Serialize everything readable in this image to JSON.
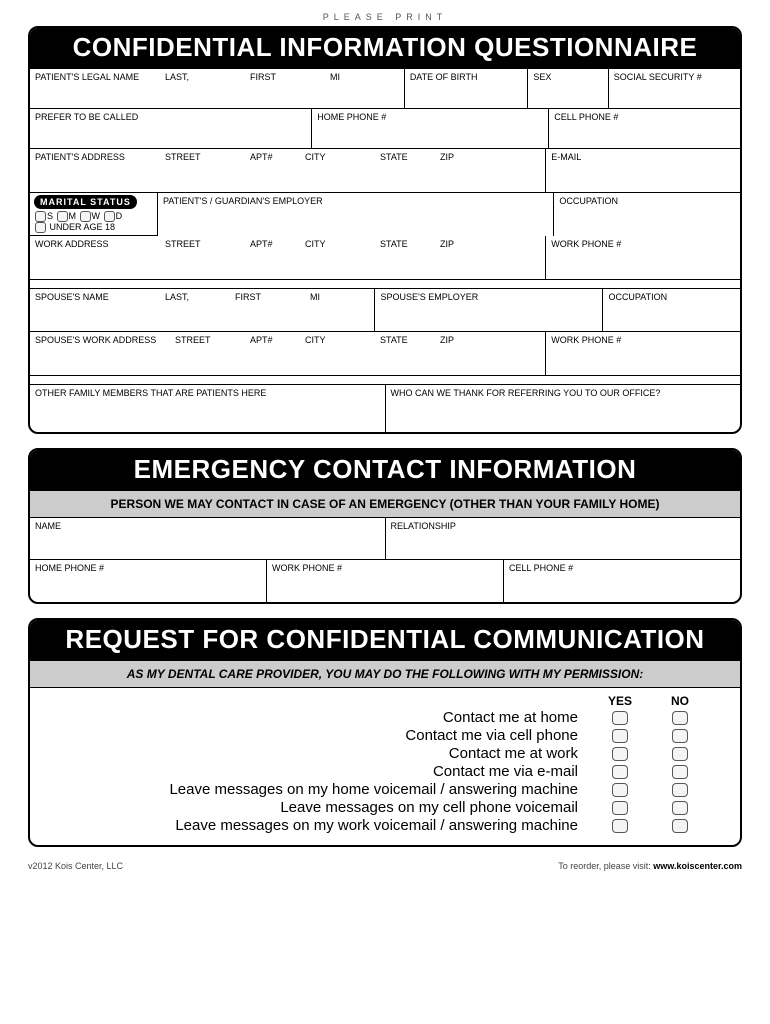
{
  "top_note": "PLEASE PRINT",
  "section1": {
    "title": "CONFIDENTIAL INFORMATION QUESTIONNAIRE",
    "row1": {
      "legal_name": "PATIENT'S LEGAL NAME",
      "last": "LAST,",
      "first": "FIRST",
      "mi": "MI",
      "dob": "DATE OF BIRTH",
      "sex": "SEX",
      "ssn": "SOCIAL SECURITY #"
    },
    "row2": {
      "prefer": "PREFER TO BE CALLED",
      "home_phone": "HOME PHONE #",
      "cell_phone": "CELL PHONE #"
    },
    "row3": {
      "address": "PATIENT'S ADDRESS",
      "street": "STREET",
      "apt": "APT#",
      "city": "CITY",
      "state": "STATE",
      "zip": "ZIP",
      "email": "E-MAIL"
    },
    "marital": {
      "badge": "MARITAL STATUS",
      "s": "S",
      "m": "M",
      "w": "W",
      "d": "D",
      "under18": "UNDER AGE 18"
    },
    "row4": {
      "employer": "PATIENT'S / GUARDIAN'S EMPLOYER",
      "occupation": "OCCUPATION"
    },
    "row5": {
      "work_address": "WORK ADDRESS",
      "street": "STREET",
      "apt": "APT#",
      "city": "CITY",
      "state": "STATE",
      "zip": "ZIP",
      "work_phone": "WORK PHONE #"
    },
    "row6": {
      "spouse_name": "SPOUSE'S NAME",
      "last": "LAST,",
      "first": "FIRST",
      "mi": "MI",
      "spouse_employer": "SPOUSE'S EMPLOYER",
      "occupation": "OCCUPATION"
    },
    "row7": {
      "spouse_work_address": "SPOUSE'S  WORK ADDRESS",
      "street": "STREET",
      "apt": "APT#",
      "city": "CITY",
      "state": "STATE",
      "zip": "ZIP",
      "work_phone": "WORK PHONE #"
    },
    "row8": {
      "other_family": "OTHER FAMILY MEMBERS THAT ARE PATIENTS HERE",
      "referral": "WHO CAN WE THANK FOR REFERRING YOU TO OUR OFFICE?"
    }
  },
  "section2": {
    "title": "EMERGENCY CONTACT INFORMATION",
    "subtitle": "PERSON WE MAY CONTACT IN CASE OF AN EMERGENCY  (OTHER THAN YOUR FAMILY HOME)",
    "row1": {
      "name": "NAME",
      "relationship": "RELATIONSHIP"
    },
    "row2": {
      "home_phone": "HOME PHONE #",
      "work_phone": "WORK PHONE #",
      "cell_phone": "CELL PHONE #"
    }
  },
  "section3": {
    "title": "REQUEST FOR CONFIDENTIAL COMMUNICATION",
    "subtitle": "AS MY DENTAL CARE PROVIDER, YOU MAY DO THE FOLLOWING WITH MY PERMISSION:",
    "yes": "YES",
    "no": "NO",
    "items": [
      "Contact me at home",
      "Contact me via cell phone",
      "Contact me at work",
      "Contact me via e-mail",
      "Leave messages on my home voicemail / answering machine",
      "Leave messages on my cell phone voicemail",
      "Leave messages on my work voicemail / answering machine"
    ]
  },
  "footer": {
    "left": "v2012   Kois Center, LLC",
    "right_text": "To reorder, please visit:  ",
    "right_url": "www.koiscenter.com"
  }
}
